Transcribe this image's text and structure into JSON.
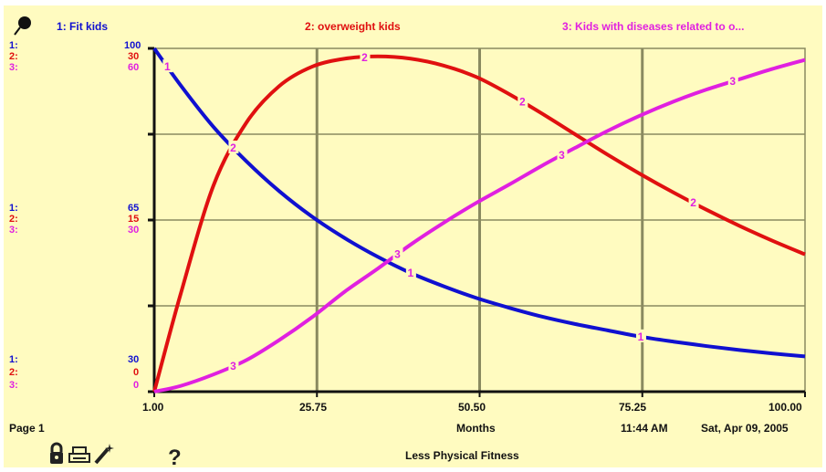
{
  "chart_data": {
    "type": "line",
    "title": "Less Physical Fitness",
    "xlabel": "Months",
    "x_ticks": [
      "1.00",
      "25.75",
      "50.50",
      "75.25",
      "100.00"
    ],
    "xlim": [
      1,
      100
    ],
    "grid": true,
    "legend_position": "top",
    "series": [
      {
        "id": "1",
        "name": "Fit kids",
        "color": "#1010d0",
        "axis_labels": {
          "top": "100",
          "mid": "65",
          "bottom": "30"
        },
        "ylim": [
          30,
          100
        ],
        "x": [
          1,
          5,
          10,
          15,
          20,
          25,
          30,
          35,
          40,
          45,
          50,
          55,
          60,
          65,
          70,
          75,
          80,
          85,
          90,
          95,
          100
        ],
        "y": [
          100,
          92.5,
          84,
          77,
          70.9,
          65.7,
          61.3,
          57.5,
          54.2,
          51.5,
          49.1,
          47.1,
          45.3,
          43.8,
          42.5,
          41.2,
          40.2,
          39.3,
          38.5,
          37.8,
          37.2
        ]
      },
      {
        "id": "2",
        "name": "overweight kids",
        "color": "#e01010",
        "axis_labels": {
          "top": "30",
          "mid": "15",
          "bottom": "0"
        },
        "ylim": [
          0,
          30
        ],
        "x": [
          1,
          5,
          10,
          15,
          20,
          25,
          30,
          35,
          40,
          45,
          50,
          55,
          60,
          65,
          70,
          75,
          80,
          85,
          90,
          95,
          100
        ],
        "y": [
          0,
          8.5,
          18,
          23.5,
          26.7,
          28.4,
          29.1,
          29.3,
          29.1,
          28.5,
          27.5,
          26,
          24.3,
          22.5,
          20.7,
          19,
          17.4,
          15.9,
          14.5,
          13.2,
          12
        ]
      },
      {
        "id": "3",
        "name": "Kids with diseases related to o...",
        "color": "#e020e0",
        "axis_labels": {
          "top": "60",
          "mid": "30",
          "bottom": "0"
        },
        "ylim": [
          0,
          60
        ],
        "x": [
          1,
          5,
          10,
          15,
          20,
          25,
          30,
          35,
          40,
          45,
          50,
          55,
          60,
          65,
          70,
          75,
          80,
          85,
          90,
          95,
          100
        ],
        "y": [
          0,
          1,
          3,
          5.5,
          9,
          13,
          17.5,
          21.5,
          25.7,
          29.5,
          33,
          36.2,
          39.5,
          42.6,
          45.6,
          48.3,
          50.7,
          52.8,
          54.6,
          56.4,
          58
        ]
      }
    ]
  },
  "footer": {
    "page": "Page 1",
    "time": "11:44 AM",
    "date": "Sat, Apr 09, 2005"
  },
  "colors": {
    "background": "#fffbc0",
    "grid": "#8a8a60"
  },
  "icons": [
    "pushpin-icon",
    "lock-icon",
    "printer-icon",
    "magic-wand-icon",
    "help-icon"
  ]
}
